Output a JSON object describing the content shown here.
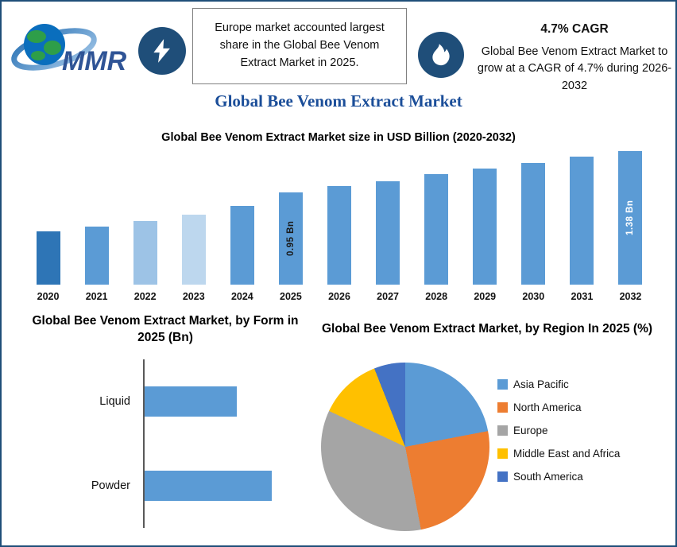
{
  "page": {
    "border_color": "#1F4E79",
    "accent_navy": "#1F4E79"
  },
  "header": {
    "logo_text": "MMR",
    "highlight_box": "Europe market accounted largest share in the Global Bee Venom Extract Market in 2025.",
    "cagr_title": "4.7% CAGR",
    "cagr_text": "Global Bee Venom Extract Market to grow at a CAGR of 4.7% during 2026-2032",
    "main_title": "Global Bee Venom Extract Market"
  },
  "chart_data": [
    {
      "type": "bar",
      "title": "Global Bee Venom Extract  Market size in USD Billion (2020-2032)",
      "categories": [
        "2020",
        "2021",
        "2022",
        "2023",
        "2024",
        "2025",
        "2026",
        "2027",
        "2028",
        "2029",
        "2030",
        "2031",
        "2032"
      ],
      "values": [
        0.55,
        0.6,
        0.66,
        0.72,
        0.81,
        0.95,
        1.02,
        1.07,
        1.14,
        1.2,
        1.26,
        1.32,
        1.38
      ],
      "ylabel": "USD Billion",
      "ylim": [
        0,
        1.5
      ],
      "grid": false,
      "bar_colors": [
        "#2E75B6",
        "#5B9BD5",
        "#9DC3E6",
        "#BDD7EE",
        "#5B9BD5",
        "#5B9BD5",
        "#5B9BD5",
        "#5B9BD5",
        "#5B9BD5",
        "#5B9BD5",
        "#5B9BD5",
        "#5B9BD5",
        "#5B9BD5"
      ],
      "bar_labels": {
        "2025": {
          "text": "0.95 Bn",
          "color": "#1a1a1a"
        },
        "2032": {
          "text": "1.38 Bn",
          "color": "#ffffff"
        }
      }
    },
    {
      "type": "bar",
      "orientation": "horizontal",
      "title": "Global Bee Venom Extract Market, by Form in 2025 (Bn)",
      "categories": [
        "Liquid",
        "Powder"
      ],
      "values": [
        0.4,
        0.55
      ],
      "bar_color": "#5B9BD5",
      "grid": false
    },
    {
      "type": "pie",
      "title": "Global Bee Venom Extract Market, by Region In 2025 (%)",
      "labels": [
        "Asia Pacific",
        "North America",
        "Europe",
        "Middle East and Africa",
        "South America"
      ],
      "values": [
        22,
        25,
        35,
        12,
        6
      ],
      "colors": [
        "#5B9BD5",
        "#ED7D31",
        "#A5A5A5",
        "#FFC000",
        "#4472C4"
      ],
      "legend_position": "right"
    }
  ]
}
